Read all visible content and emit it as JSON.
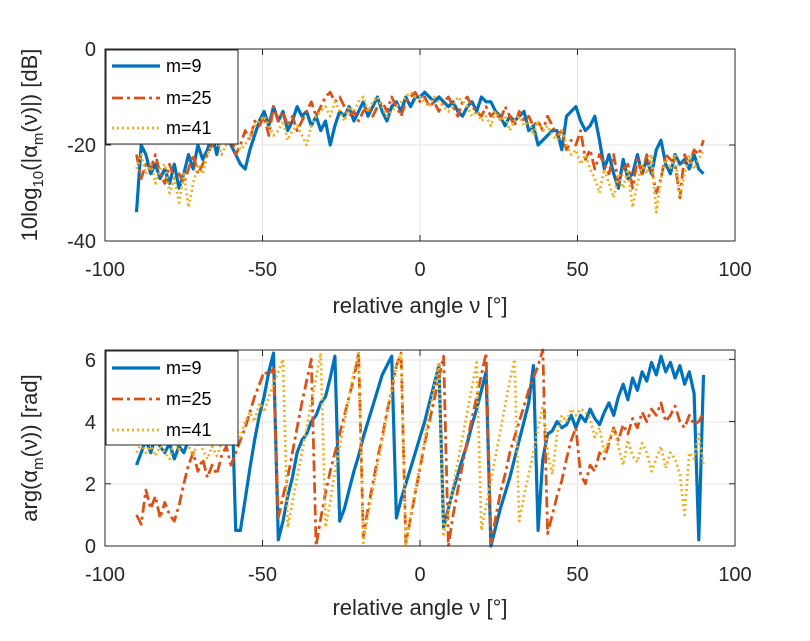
{
  "colors": {
    "s1": "#0072BD",
    "s2": "#D95319",
    "s3": "#EDB120",
    "grid": "#e6e6e6",
    "axis": "#262626"
  },
  "chart_data": [
    {
      "type": "line",
      "title": "",
      "xlabel": "relative angle ν [°]",
      "ylabel": "10log10(|αm(ν)|) [dB]",
      "ylabel_parts": {
        "prefix": "10log",
        "sub1": "10",
        "mid": "(|α",
        "sub2": "m",
        "suffix": "(ν)|) [dB]"
      },
      "xlim": [
        -100,
        100
      ],
      "ylim": [
        -40,
        0
      ],
      "xticks": [
        -100,
        -50,
        0,
        50,
        100
      ],
      "xtick_labels": [
        "-100",
        "-50",
        "0",
        "50",
        "100"
      ],
      "yticks": [
        -40,
        -20,
        0
      ],
      "ytick_labels": [
        "-40",
        "-20",
        "0"
      ],
      "grid": true,
      "legend_position": "top-left",
      "x_range": [
        -90,
        90
      ],
      "series": [
        {
          "name": "m=9",
          "style": "solid",
          "values": [
            -34,
            -20,
            -22,
            -26,
            -24,
            -27,
            -25,
            -28,
            -24,
            -29,
            -26,
            -22,
            -25,
            -20,
            -23,
            -21,
            -18,
            -22,
            -17,
            -18,
            -20,
            -22,
            -24,
            -25,
            -21,
            -18,
            -15,
            -13,
            -16,
            -12,
            -15,
            -13,
            -17,
            -15,
            -12,
            -14,
            -13,
            -16,
            -14,
            -17,
            -15,
            -20,
            -16,
            -13,
            -14,
            -12,
            -15,
            -13,
            -11,
            -14,
            -12,
            -10,
            -13,
            -15,
            -12,
            -11,
            -13,
            -10,
            -12,
            -10,
            -10,
            -9,
            -10,
            -11,
            -10,
            -11,
            -12,
            -11,
            -13,
            -14,
            -12,
            -11,
            -13,
            -10,
            -11,
            -11,
            -13,
            -14,
            -16,
            -14,
            -15,
            -14,
            -13,
            -17,
            -16,
            -20,
            -19,
            -18,
            -17,
            -17,
            -21,
            -14,
            -13,
            -12,
            -15,
            -17,
            -16,
            -14,
            -19,
            -25,
            -22,
            -26,
            -29,
            -23,
            -27,
            -26,
            -22,
            -26,
            -23,
            -26,
            -21,
            -19,
            -24,
            -26,
            -22,
            -24,
            -23,
            -25,
            -22,
            -25,
            -26
          ]
        },
        {
          "name": "m=25",
          "style": "dashdot",
          "values": [
            -22,
            -27,
            -24,
            -25,
            -22,
            -26,
            -28,
            -24,
            -27,
            -26,
            -28,
            -25,
            -22,
            -26,
            -24,
            -22,
            -20,
            -18,
            -17,
            -20,
            -18,
            -22,
            -20,
            -17,
            -19,
            -15,
            -16,
            -14,
            -18,
            -12,
            -15,
            -13,
            -16,
            -14,
            -17,
            -15,
            -13,
            -11,
            -14,
            -12,
            -10,
            -9,
            -11,
            -10,
            -12,
            -14,
            -13,
            -15,
            -13,
            -12,
            -14,
            -12,
            -11,
            -13,
            -10,
            -12,
            -14,
            -11,
            -10,
            -9,
            -11,
            -10,
            -12,
            -11,
            -13,
            -11,
            -10,
            -12,
            -14,
            -11,
            -10,
            -12,
            -13,
            -14,
            -12,
            -14,
            -13,
            -15,
            -12,
            -14,
            -16,
            -13,
            -15,
            -14,
            -16,
            -15,
            -17,
            -14,
            -16,
            -18,
            -17,
            -21,
            -19,
            -20,
            -17,
            -23,
            -21,
            -25,
            -22,
            -24,
            -26,
            -22,
            -28,
            -25,
            -24,
            -29,
            -23,
            -26,
            -22,
            -25,
            -30,
            -27,
            -22,
            -23,
            -24,
            -31,
            -22,
            -24,
            -21,
            -22,
            -19
          ]
        },
        {
          "name": "m=41",
          "style": "dotted",
          "values": [
            -25,
            -22,
            -26,
            -24,
            -28,
            -25,
            -24,
            -30,
            -27,
            -32,
            -26,
            -33,
            -28,
            -24,
            -26,
            -22,
            -20,
            -18,
            -22,
            -20,
            -17,
            -19,
            -21,
            -20,
            -18,
            -16,
            -15,
            -14,
            -16,
            -18,
            -17,
            -15,
            -19,
            -17,
            -16,
            -18,
            -20,
            -16,
            -14,
            -13,
            -12,
            -14,
            -11,
            -13,
            -15,
            -12,
            -13,
            -11,
            -10,
            -13,
            -11,
            -10,
            -12,
            -14,
            -13,
            -12,
            -11,
            -10,
            -9,
            -10,
            -10,
            -11,
            -12,
            -10,
            -11,
            -12,
            -13,
            -12,
            -10,
            -11,
            -12,
            -14,
            -13,
            -15,
            -14,
            -16,
            -13,
            -15,
            -14,
            -17,
            -15,
            -14,
            -16,
            -15,
            -18,
            -15,
            -17,
            -16,
            -18,
            -19,
            -17,
            -20,
            -22,
            -21,
            -24,
            -22,
            -25,
            -27,
            -30,
            -25,
            -28,
            -31,
            -26,
            -29,
            -25,
            -33,
            -28,
            -24,
            -26,
            -22,
            -34,
            -27,
            -23,
            -25,
            -22,
            -31,
            -26,
            -22,
            -25,
            -23,
            -21
          ]
        }
      ]
    },
    {
      "type": "line",
      "title": "",
      "xlabel": "relative angle ν [°]",
      "ylabel": "arg(αm(ν)) [rad]",
      "ylabel_parts": {
        "prefix": "arg(α",
        "sub": "m",
        "suffix": "(ν)) [rad]"
      },
      "xlim": [
        -100,
        100
      ],
      "ylim": [
        0,
        6.3
      ],
      "xticks": [
        -100,
        -50,
        0,
        50,
        100
      ],
      "xtick_labels": [
        "-100",
        "-50",
        "0",
        "50",
        "100"
      ],
      "yticks": [
        0,
        2,
        4,
        6
      ],
      "ytick_labels": [
        "0",
        "2",
        "4",
        "6"
      ],
      "grid": true,
      "legend_position": "top-left",
      "x_range": [
        -90,
        90
      ],
      "series": [
        {
          "name": "m=9",
          "style": "solid",
          "values": [
            2.6,
            3.0,
            3.4,
            3.0,
            3.5,
            3.2,
            3.0,
            3.3,
            2.8,
            3.2,
            3.0,
            3.4,
            3.6,
            3.3,
            3.8,
            4.2,
            4.6,
            4.3,
            5.0,
            5.4,
            5.8,
            0.5,
            0.5,
            1.5,
            2.5,
            3.4,
            4.2,
            4.8,
            5.6,
            6.2,
            0.2,
            0.8,
            1.6,
            2.2,
            3.0,
            3.4,
            3.6,
            4.0,
            4.2,
            4.6,
            4.8,
            5.4,
            6.1,
            0.8,
            1.2,
            1.8,
            2.4,
            2.9,
            3.5,
            4.0,
            4.5,
            5.0,
            5.5,
            5.8,
            6.1,
            0.9,
            1.5,
            2.0,
            2.5,
            3.0,
            3.5,
            4.0,
            4.6,
            5.2,
            5.8,
            0.6,
            1.2,
            1.8,
            2.3,
            2.8,
            3.3,
            3.9,
            4.4,
            5.0,
            5.6,
            0.0,
            0.6,
            1.2,
            1.7,
            2.2,
            2.8,
            3.4,
            4.0,
            4.6,
            5.8,
            0.5,
            2.8,
            3.6,
            3.7,
            4.0,
            3.8,
            3.9,
            4.2,
            3.8,
            4.2,
            4.0,
            4.4,
            4.1,
            3.9,
            4.3,
            4.6,
            4.2,
            4.8,
            5.2,
            4.7,
            5.4,
            5.0,
            5.6,
            5.3,
            5.9,
            5.5,
            6.1,
            5.6,
            5.9,
            5.4,
            5.8,
            5.2,
            5.6,
            4.9,
            0.2,
            5.5
          ]
        },
        {
          "name": "m=25",
          "style": "dashdot",
          "values": [
            1.0,
            0.7,
            1.8,
            1.2,
            1.6,
            0.9,
            1.4,
            1.0,
            0.8,
            1.3,
            2.0,
            2.6,
            3.0,
            2.4,
            2.8,
            2.2,
            2.6,
            2.3,
            2.9,
            3.2,
            2.6,
            3.0,
            3.4,
            3.8,
            4.3,
            4.8,
            5.2,
            5.6,
            5.5,
            5.7,
            0.9,
            1.6,
            2.2,
            3.0,
            3.8,
            4.6,
            5.3,
            6.0,
            0.0,
            0.9,
            1.7,
            2.4,
            3.0,
            3.6,
            4.2,
            4.8,
            5.4,
            6.2,
            0.3,
            1.2,
            2.0,
            2.8,
            3.5,
            4.3,
            5.0,
            5.8,
            6.2,
            0.1,
            0.9,
            1.7,
            2.5,
            3.3,
            4.0,
            4.7,
            5.4,
            6.1,
            0.0,
            1.0,
            1.8,
            2.6,
            3.4,
            4.1,
            4.8,
            5.5,
            6.2,
            0.1,
            0.9,
            1.7,
            2.3,
            3.0,
            3.5,
            4.0,
            4.5,
            5.0,
            5.4,
            5.8,
            6.3,
            0.4,
            1.0,
            1.6,
            2.1,
            2.8,
            3.4,
            3.8,
            2.3,
            2.0,
            2.6,
            2.4,
            3.0,
            2.8,
            3.3,
            3.8,
            3.4,
            3.9,
            3.6,
            4.1,
            3.8,
            4.3,
            4.0,
            4.4,
            4.2,
            4.6,
            4.0,
            4.2,
            4.5,
            4.0,
            3.8,
            4.2,
            3.9,
            4.0,
            4.3
          ]
        },
        {
          "name": "m=41",
          "style": "dotted",
          "values": [
            3.0,
            3.3,
            3.0,
            3.2,
            2.9,
            3.2,
            3.0,
            2.8,
            3.4,
            3.1,
            3.5,
            3.2,
            2.9,
            3.4,
            3.1,
            2.8,
            3.2,
            2.9,
            3.3,
            3.6,
            3.4,
            3.8,
            3.5,
            4.0,
            4.3,
            4.0,
            4.6,
            4.3,
            4.8,
            5.2,
            5.6,
            6.0,
            0.6,
            1.4,
            2.2,
            3.0,
            3.8,
            4.6,
            5.4,
            6.2,
            0.6,
            1.4,
            2.4,
            3.2,
            4.0,
            4.8,
            5.6,
            6.2,
            0.1,
            1.0,
            1.8,
            2.6,
            3.4,
            4.2,
            5.0,
            5.8,
            6.2,
            0.0,
            1.0,
            1.8,
            2.6,
            3.4,
            4.3,
            5.1,
            5.9,
            0.3,
            1.1,
            1.9,
            2.7,
            3.5,
            4.3,
            5.1,
            5.9,
            0.5,
            1.3,
            2.1,
            2.9,
            3.7,
            4.5,
            5.3,
            6.0,
            0.8,
            1.6,
            2.3,
            3.0,
            3.8,
            4.5,
            3.0,
            2.3,
            3.6,
            4.2,
            4.0,
            4.4,
            4.2,
            4.4,
            4.3,
            4.1,
            3.5,
            3.8,
            3.0,
            3.4,
            3.8,
            3.2,
            2.6,
            3.4,
            2.9,
            2.7,
            3.3,
            3.0,
            2.4,
            2.8,
            3.2,
            2.5,
            3.0,
            2.8,
            2.3,
            1.0,
            3.0,
            2.8,
            3.6,
            2.6
          ]
        }
      ]
    }
  ]
}
